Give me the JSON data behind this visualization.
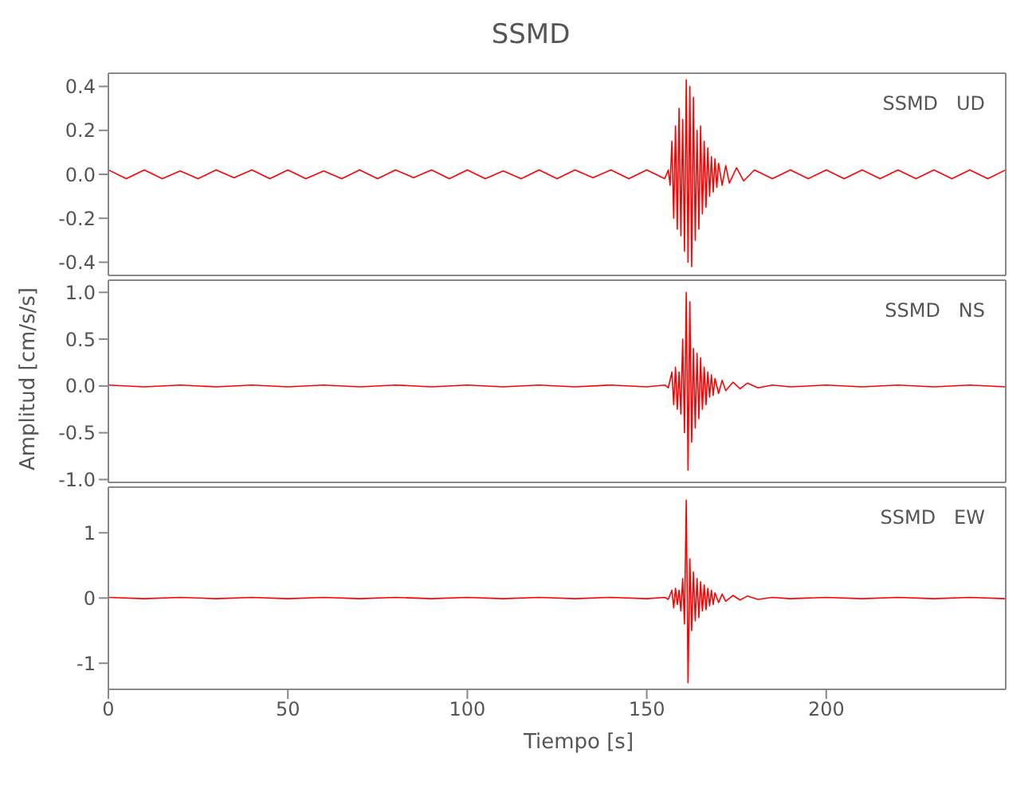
{
  "chart_data": [
    {
      "type": "line",
      "title": "SSMD",
      "annotations": [
        "SSMD   UD"
      ],
      "xlim": [
        0,
        250
      ],
      "xticks": [
        0,
        50,
        100,
        150,
        200
      ],
      "ylim": [
        -0.46,
        0.46
      ],
      "yticks": [
        -0.4,
        -0.2,
        {
          "value": 0,
          "label": "0.0"
        },
        0.2,
        0.4
      ],
      "tick_labels": "y",
      "series": [
        {
          "color": "#ff0000",
          "x": [
            0,
            5,
            10,
            15,
            20,
            25,
            30,
            35,
            40,
            45,
            50,
            55,
            60,
            65,
            70,
            75,
            80,
            85,
            90,
            95,
            100,
            105,
            110,
            115,
            120,
            125,
            130,
            135,
            140,
            145,
            150,
            155,
            156,
            156.5,
            157,
            157.5,
            158,
            158.5,
            159,
            159.5,
            160,
            160.5,
            161,
            161.5,
            162,
            162.5,
            163,
            163.5,
            164,
            164.5,
            165,
            165.5,
            166,
            166.5,
            167,
            167.5,
            168,
            168.5,
            169,
            169.5,
            170,
            171,
            172,
            173,
            175,
            177,
            180,
            185,
            190,
            195,
            200,
            205,
            210,
            215,
            220,
            225,
            230,
            235,
            240,
            245,
            250
          ],
          "values": [
            0.02,
            -0.02,
            0.02,
            -0.02,
            0.015,
            -0.02,
            0.02,
            -0.015,
            0.02,
            -0.02,
            0.02,
            -0.02,
            0.015,
            -0.02,
            0.02,
            -0.02,
            0.02,
            -0.015,
            0.02,
            -0.02,
            0.02,
            -0.02,
            0.015,
            -0.02,
            0.02,
            -0.02,
            0.02,
            -0.015,
            0.02,
            -0.02,
            0.02,
            -0.02,
            0.02,
            -0.05,
            0.15,
            -0.2,
            0.22,
            -0.25,
            0.3,
            -0.28,
            0.25,
            -0.35,
            0.43,
            -0.4,
            0.4,
            -0.42,
            0.35,
            -0.3,
            0.2,
            -0.25,
            0.22,
            -0.18,
            0.15,
            -0.15,
            0.12,
            -0.1,
            0.08,
            -0.08,
            0.07,
            -0.06,
            0.05,
            -0.05,
            0.04,
            -0.04,
            0.03,
            -0.03,
            0.02,
            -0.02,
            0.02,
            -0.02,
            0.02,
            -0.02,
            0.02,
            -0.02,
            0.02,
            -0.02,
            0.02,
            -0.02,
            0.02,
            -0.02,
            0.02
          ]
        }
      ]
    },
    {
      "type": "line",
      "ylabel": "Amplitud [cm/s/s]",
      "annotations": [
        "SSMD   NS"
      ],
      "xlim": [
        0,
        250
      ],
      "xticks": [
        0,
        50,
        100,
        150,
        200
      ],
      "ylim": [
        -1.03,
        1.13
      ],
      "yticks": [
        {
          "value": -1,
          "label": "-1.0"
        },
        -0.5,
        {
          "value": 0,
          "label": "0.0"
        },
        0.5,
        {
          "value": 1,
          "label": "1.0"
        }
      ],
      "tick_labels": "y",
      "series": [
        {
          "color": "#ff0000",
          "x": [
            0,
            10,
            20,
            30,
            40,
            50,
            60,
            70,
            80,
            90,
            100,
            110,
            120,
            130,
            140,
            150,
            155,
            156,
            157,
            157.5,
            158,
            158.5,
            159,
            159.5,
            160,
            160.5,
            161,
            161.5,
            162,
            162.5,
            163,
            163.5,
            164,
            164.5,
            165,
            165.5,
            166,
            166.5,
            167,
            167.5,
            168,
            168.5,
            169,
            170,
            171,
            172,
            174,
            176,
            178,
            181,
            185,
            190,
            200,
            210,
            220,
            230,
            240,
            250
          ],
          "values": [
            0.01,
            -0.01,
            0.01,
            -0.01,
            0.01,
            -0.01,
            0.01,
            -0.01,
            0.01,
            -0.01,
            0.01,
            -0.01,
            0.01,
            -0.01,
            0.01,
            -0.01,
            0.01,
            -0.02,
            0.15,
            -0.2,
            0.2,
            -0.25,
            0.15,
            -0.3,
            0.5,
            -0.5,
            1.0,
            -0.9,
            0.9,
            -0.6,
            0.4,
            -0.45,
            0.35,
            -0.35,
            0.3,
            -0.25,
            0.2,
            -0.2,
            0.15,
            -0.12,
            0.12,
            -0.1,
            0.08,
            -0.08,
            0.06,
            -0.05,
            0.04,
            -0.03,
            0.03,
            -0.02,
            0.01,
            -0.01,
            0.01,
            -0.01,
            0.01,
            -0.01,
            0.01,
            -0.01
          ]
        }
      ]
    },
    {
      "type": "line",
      "xlabel": "Tiempo [s]",
      "annotations": [
        "SSMD   EW"
      ],
      "xlim": [
        0,
        250
      ],
      "xticks": [
        0,
        50,
        100,
        150,
        200
      ],
      "ylim": [
        -1.4,
        1.7
      ],
      "yticks": [
        -1,
        0,
        1
      ],
      "series": [
        {
          "color": "#ff0000",
          "x": [
            0,
            10,
            20,
            30,
            40,
            50,
            60,
            70,
            80,
            90,
            100,
            110,
            120,
            130,
            140,
            150,
            155,
            156,
            157,
            157.5,
            158,
            158.5,
            159,
            159.5,
            160,
            160.5,
            161,
            161.5,
            162,
            162.5,
            163,
            163.5,
            164,
            164.5,
            165,
            165.5,
            166,
            166.5,
            167,
            167.5,
            168,
            168.5,
            169,
            170,
            171,
            172,
            174,
            176,
            178,
            181,
            185,
            190,
            200,
            210,
            220,
            230,
            240,
            250
          ],
          "values": [
            0.01,
            -0.01,
            0.01,
            -0.01,
            0.01,
            -0.01,
            0.01,
            -0.01,
            0.01,
            -0.01,
            0.01,
            -0.01,
            0.01,
            -0.01,
            0.01,
            -0.01,
            0.01,
            -0.02,
            0.12,
            -0.15,
            0.15,
            -0.1,
            0.12,
            -0.2,
            0.3,
            -0.4,
            1.5,
            -1.3,
            0.6,
            -0.5,
            0.4,
            -0.35,
            0.3,
            -0.3,
            0.25,
            -0.2,
            0.2,
            -0.18,
            0.15,
            -0.12,
            0.12,
            -0.1,
            0.08,
            -0.07,
            0.06,
            -0.05,
            0.04,
            -0.03,
            0.03,
            -0.02,
            0.01,
            -0.01,
            0.01,
            -0.01,
            0.01,
            -0.01,
            0.01,
            -0.01
          ]
        }
      ]
    }
  ]
}
